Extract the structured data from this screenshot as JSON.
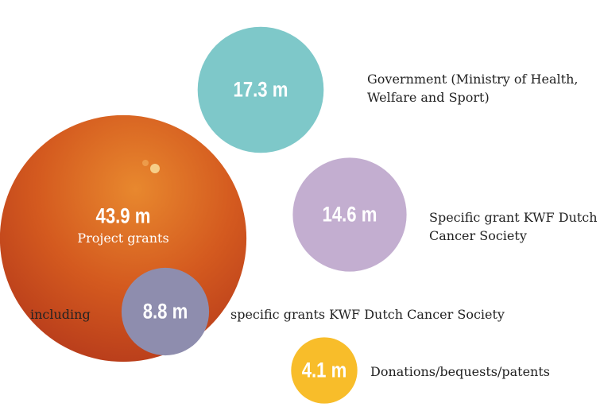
{
  "chart_data": {
    "type": "bubble",
    "categories": [
      "Government (Ministry of Health, Welfare and Sport)",
      "Specific grant KWF Dutch Cancer Society",
      "Project grants",
      "specific grants KWF Dutch Cancer Society",
      "Donations/bequests/patents"
    ],
    "values": [
      17.3,
      14.6,
      43.9,
      8.8,
      4.1
    ],
    "value_labels": [
      "17.3 m",
      "14.6 m",
      "43.9 m",
      "8.8 m",
      "4.1 m"
    ],
    "colors": [
      "#7ec8c9",
      "#c3aed0",
      "#d2521f",
      "#8e8dae",
      "#f8bd2a"
    ],
    "annotations": [
      "including"
    ]
  }
}
